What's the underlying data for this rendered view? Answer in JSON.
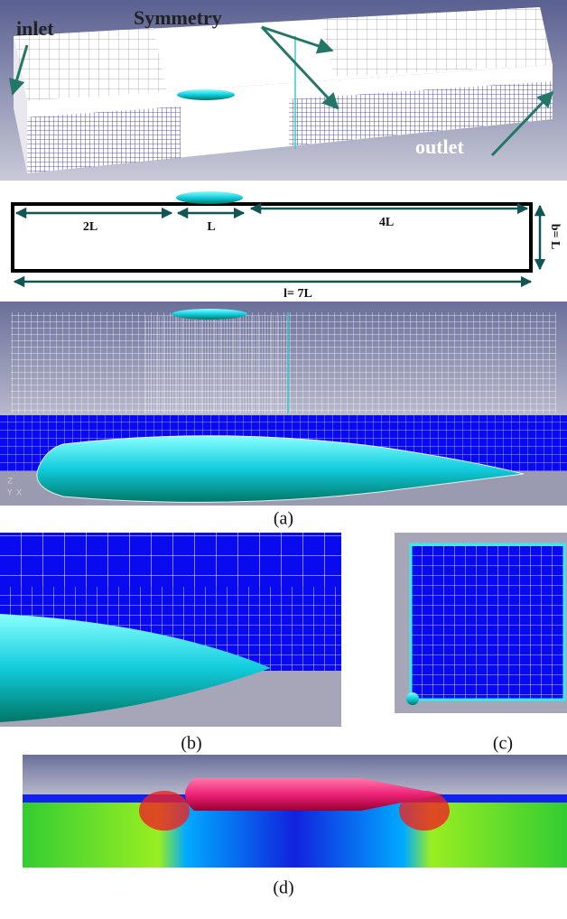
{
  "panel_a": {
    "domain": {
      "inlet": "inlet",
      "symmetry": "Symmetry",
      "outlet": "outlet"
    },
    "schematic": {
      "upstream": "2L",
      "chord": "L",
      "downstream": "4L",
      "width": "b= L",
      "length": "l= 7L"
    },
    "axes": {
      "z": "Z",
      "y": "Y",
      "x": "X"
    },
    "caption": "(a)"
  },
  "panel_b": {
    "caption": "(b)"
  },
  "panel_c": {
    "caption": "(c)"
  },
  "panel_d": {
    "caption": "(d)"
  }
}
